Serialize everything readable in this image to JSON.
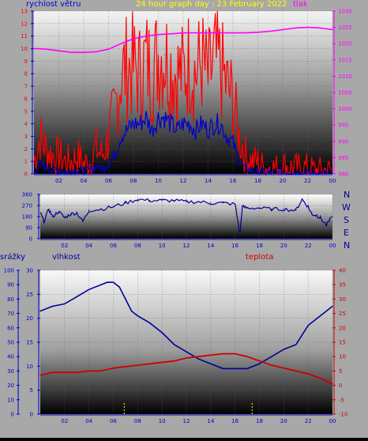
{
  "header": {
    "wind_label": "rychlost větru",
    "title": "24 hour graph day : 23 February 2022",
    "pressure_label": "tlak"
  },
  "wind_dir_labels": [
    "N",
    "W",
    "S",
    "E",
    "N"
  ],
  "lower_labels": {
    "rain": "srážky",
    "humidity": "vlhkost",
    "temperature": "teplota"
  },
  "colors": {
    "wind_gust": "#ff0000",
    "wind_avg": "#0000cc",
    "pressure": "#ff00ff",
    "direction": "#000099",
    "humidity": "#000099",
    "temperature": "#cc0000",
    "rain": "#ffff00",
    "axis_left": "#0000cc",
    "axis_right_top": "#ff00ff",
    "axis_right_bottom": "#cc0000",
    "title": "#ffff00"
  },
  "chart_data": [
    {
      "type": "line",
      "id": "wind_pressure",
      "title": "24 hour graph day : 23 February 2022",
      "ylabel": "rychlost větru",
      "y2label": "tlak",
      "x_ticks": [
        "02",
        "04",
        "06",
        "08",
        "10",
        "12",
        "14",
        "16",
        "18",
        "20",
        "22",
        "00"
      ],
      "xlim": [
        0,
        24
      ],
      "ylim": [
        0,
        13
      ],
      "y_ticks": [
        0,
        1,
        2,
        3,
        4,
        5,
        6,
        7,
        8,
        9,
        10,
        11,
        12,
        13
      ],
      "y2lim": [
        980,
        1030
      ],
      "y2_ticks": [
        980,
        985,
        990,
        995,
        1000,
        1005,
        1010,
        1015,
        1020,
        1025,
        1030
      ],
      "series": [
        {
          "name": "gust",
          "axis": "left",
          "x": [
            0,
            0.5,
            1,
            1.5,
            2,
            2.5,
            3,
            3.5,
            4,
            4.5,
            5,
            5.5,
            6,
            6.5,
            7,
            7.5,
            8,
            8.5,
            9,
            9.5,
            10,
            10.5,
            11,
            11.5,
            12,
            12.5,
            13,
            13.5,
            14,
            14.5,
            15,
            15.5,
            16,
            16.5,
            17,
            17.5,
            18,
            18.5,
            19,
            19.5,
            20,
            20.5,
            21,
            21.5,
            22,
            22.5,
            23,
            23.5,
            24
          ],
          "values": [
            1,
            3,
            2,
            1.5,
            1.5,
            1,
            1,
            1.5,
            0.8,
            1,
            2,
            1.5,
            3,
            5,
            8,
            8.5,
            8.5,
            8,
            9,
            8,
            9.5,
            9.5,
            8.5,
            8,
            8,
            9,
            8,
            9,
            7.5,
            9,
            8.5,
            7,
            6,
            3,
            1.5,
            1,
            1,
            0.5,
            0.5,
            0.5,
            0.8,
            0.5,
            0.5,
            0.5,
            0.5,
            0.3,
            0.3,
            0.3,
            0.3
          ]
        },
        {
          "name": "average",
          "axis": "left",
          "x": [
            0,
            0.5,
            1,
            1.5,
            2,
            2.5,
            3,
            3.5,
            4,
            4.5,
            5,
            5.5,
            6,
            6.5,
            7,
            7.5,
            8,
            8.5,
            9,
            9.5,
            10,
            10.5,
            11,
            11.5,
            12,
            12.5,
            13,
            13.5,
            14,
            14.5,
            15,
            15.5,
            16,
            16.5,
            17,
            17.5,
            18,
            18.5,
            19,
            19.5,
            20,
            20.5,
            21,
            21.5,
            22,
            22.5,
            23,
            23.5,
            24
          ],
          "values": [
            0.2,
            0.7,
            0.5,
            0.3,
            0.3,
            0.2,
            0.2,
            0.4,
            0.2,
            0.3,
            0.6,
            0.4,
            0.8,
            1.5,
            3,
            3.5,
            4,
            4,
            4.5,
            3.5,
            4.5,
            4.5,
            4,
            3.5,
            4,
            4,
            3.5,
            4,
            3.5,
            4,
            4,
            3,
            2.5,
            1,
            0.4,
            0.3,
            0.2,
            0.1,
            0.1,
            0.1,
            0.2,
            0.1,
            0.1,
            0.1,
            0.1,
            0.05,
            0.05,
            0.05,
            0.05
          ]
        },
        {
          "name": "pressure",
          "axis": "right",
          "x": [
            0,
            1,
            2,
            3,
            4,
            5,
            6,
            7,
            8,
            9,
            10,
            11,
            12,
            13,
            14,
            15,
            16,
            17,
            18,
            19,
            20,
            21,
            22,
            23,
            24
          ],
          "values": [
            1018.5,
            1018.3,
            1017.8,
            1017.3,
            1017.3,
            1017.5,
            1018.3,
            1020,
            1021.5,
            1022.3,
            1022.8,
            1023,
            1023.3,
            1023.3,
            1023.3,
            1023.3,
            1023.3,
            1023.3,
            1023.5,
            1023.8,
            1024.3,
            1024.8,
            1025,
            1024.8,
            1024.3
          ]
        }
      ]
    },
    {
      "type": "line",
      "id": "wind_direction",
      "x_ticks": [
        "02",
        "04",
        "06",
        "08",
        "10",
        "12",
        "14",
        "16",
        "18",
        "20",
        "22",
        "00"
      ],
      "xlim": [
        0,
        24
      ],
      "ylim": [
        0,
        360
      ],
      "y_ticks": [
        0,
        90,
        180,
        270,
        360
      ],
      "series": [
        {
          "name": "direction",
          "x": [
            0,
            0.3,
            0.7,
            1,
            1.5,
            2,
            2.5,
            3,
            3.5,
            4,
            5,
            6,
            7,
            8,
            9,
            10,
            11,
            12,
            13,
            14,
            15,
            16,
            16.4,
            16.6,
            17,
            18,
            19,
            20,
            21,
            21.5,
            22,
            22.3,
            22.7,
            23,
            23.5,
            24
          ],
          "values": [
            210,
            140,
            240,
            180,
            220,
            170,
            200,
            210,
            140,
            230,
            240,
            260,
            290,
            320,
            310,
            310,
            310,
            300,
            300,
            290,
            290,
            280,
            40,
            260,
            250,
            250,
            240,
            240,
            230,
            320,
            260,
            200,
            190,
            170,
            110,
            180
          ]
        }
      ]
    },
    {
      "type": "line",
      "id": "rain_humidity_temperature",
      "x_ticks": [
        "02",
        "04",
        "06",
        "08",
        "10",
        "12",
        "14",
        "16",
        "18",
        "20",
        "22",
        "00"
      ],
      "xlim": [
        0,
        24
      ],
      "rain_ticks": [
        0,
        10,
        20,
        30,
        40,
        50,
        60,
        70,
        80,
        90,
        100
      ],
      "ylim": [
        0,
        30
      ],
      "y_ticks": [
        0,
        5,
        10,
        15,
        20,
        25,
        30
      ],
      "y2lim": [
        -10,
        40
      ],
      "y2_ticks": [
        -10,
        -5,
        0,
        5,
        10,
        15,
        20,
        25,
        30,
        35,
        40
      ],
      "series": [
        {
          "name": "humidity",
          "axis": "middle",
          "x": [
            0,
            1,
            2,
            3,
            4,
            5,
            5.5,
            6,
            6.5,
            7,
            7.5,
            8,
            9,
            10,
            11,
            12,
            13,
            14,
            15,
            16,
            17,
            18,
            19,
            20,
            21,
            22,
            23,
            24
          ],
          "values": [
            21.5,
            22.5,
            23,
            24.5,
            26,
            27,
            27.5,
            27.5,
            26.5,
            24,
            21.5,
            20.5,
            19,
            17,
            14.5,
            13,
            11.5,
            10.5,
            9.5,
            9.5,
            9.5,
            10.5,
            12,
            13.5,
            14.5,
            18.5,
            20.5,
            22.5
          ]
        },
        {
          "name": "temperature",
          "axis": "right",
          "x": [
            0,
            1,
            2,
            3,
            4,
            5,
            6,
            7,
            8,
            9,
            10,
            11,
            12,
            13,
            14,
            15,
            16,
            17,
            18,
            19,
            20,
            21,
            22,
            23,
            24
          ],
          "values": [
            3.5,
            4.5,
            4.5,
            4.5,
            5,
            5,
            6,
            6.5,
            7,
            7.5,
            8,
            8.5,
            9.5,
            10,
            10.5,
            11,
            11,
            10,
            8.5,
            7,
            6,
            5,
            4,
            2.5,
            0.5
          ]
        },
        {
          "name": "rain",
          "axis": "left",
          "x": [
            6.9,
            17.4
          ],
          "values": [
            8,
            8
          ]
        }
      ]
    }
  ]
}
